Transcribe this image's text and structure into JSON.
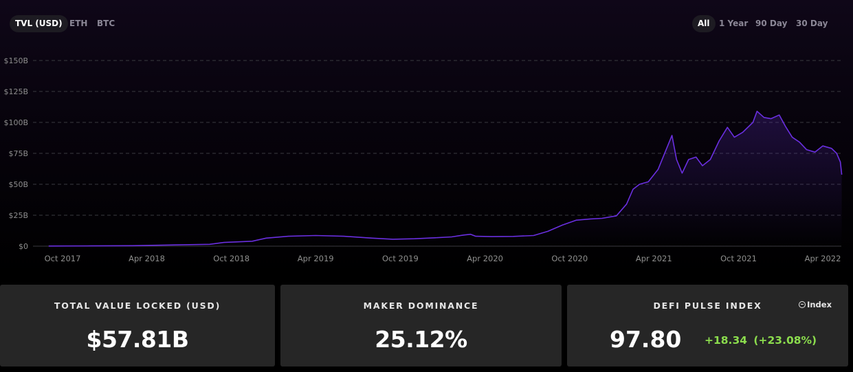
{
  "tabs": [
    {
      "label": "TVL (USD)",
      "active": true
    },
    {
      "label": "ETH",
      "active": false
    },
    {
      "label": "BTC",
      "active": false
    }
  ],
  "ranges": [
    {
      "label": "All",
      "active": true
    },
    {
      "label": "1 Year",
      "active": false
    },
    {
      "label": "90 Day",
      "active": false
    },
    {
      "label": "30 Day",
      "active": false
    }
  ],
  "colors": {
    "line": "#6a2fe0",
    "grid": "#3a3a40",
    "axis_text": "#8e8e8e",
    "positive": "#8bdc4d"
  },
  "chart_data": {
    "type": "area",
    "title": "",
    "xlabel": "",
    "ylabel": "",
    "y_ticks": [
      "$0",
      "$25B",
      "$50B",
      "$75B",
      "$100B",
      "$125B",
      "$150B"
    ],
    "x_ticks": [
      "Oct 2017",
      "Apr 2018",
      "Oct 2018",
      "Apr 2019",
      "Oct 2019",
      "Apr 2020",
      "Oct 2020",
      "Apr 2021",
      "Oct 2021",
      "Apr 2022"
    ],
    "ylim": [
      0,
      150
    ],
    "y_unit": "billion USD",
    "grid": true,
    "series": [
      {
        "values": [
          [
            "2017-09-01",
            0.1
          ],
          [
            "2017-12-01",
            0.2
          ],
          [
            "2018-03-01",
            0.4
          ],
          [
            "2018-06-01",
            1.0
          ],
          [
            "2018-08-15",
            1.5
          ],
          [
            "2018-09-15",
            3.0
          ],
          [
            "2018-11-15",
            4.0
          ],
          [
            "2018-12-15",
            6.5
          ],
          [
            "2019-02-01",
            8.0
          ],
          [
            "2019-04-01",
            8.6
          ],
          [
            "2019-06-01",
            8.0
          ],
          [
            "2019-08-01",
            6.5
          ],
          [
            "2019-09-15",
            5.6
          ],
          [
            "2019-11-01",
            6.0
          ],
          [
            "2019-12-15",
            6.8
          ],
          [
            "2020-01-20",
            7.5
          ],
          [
            "2020-02-15",
            9.0
          ],
          [
            "2020-03-01",
            9.6
          ],
          [
            "2020-03-12",
            8.0
          ],
          [
            "2020-04-15",
            7.7
          ],
          [
            "2020-06-01",
            7.9
          ],
          [
            "2020-07-15",
            8.6
          ],
          [
            "2020-08-15",
            12.0
          ],
          [
            "2020-09-15",
            17.0
          ],
          [
            "2020-10-15",
            21.0
          ],
          [
            "2020-11-15",
            22.0
          ],
          [
            "2020-12-10",
            22.5
          ],
          [
            "2021-01-10",
            24.5
          ],
          [
            "2021-02-01",
            34.0
          ],
          [
            "2021-02-15",
            46.0
          ],
          [
            "2021-03-01",
            50.0
          ],
          [
            "2021-03-20",
            52.0
          ],
          [
            "2021-04-10",
            62.0
          ],
          [
            "2021-05-10",
            89.5
          ],
          [
            "2021-05-20",
            70.0
          ],
          [
            "2021-06-01",
            59.0
          ],
          [
            "2021-06-15",
            70.0
          ],
          [
            "2021-07-01",
            72.0
          ],
          [
            "2021-07-15",
            65.0
          ],
          [
            "2021-08-01",
            70.0
          ],
          [
            "2021-08-20",
            85.0
          ],
          [
            "2021-09-07",
            96.0
          ],
          [
            "2021-09-22",
            88.0
          ],
          [
            "2021-10-10",
            92.0
          ],
          [
            "2021-11-01",
            100.0
          ],
          [
            "2021-11-10",
            109.0
          ],
          [
            "2021-11-25",
            104.0
          ],
          [
            "2021-12-10",
            103.0
          ],
          [
            "2021-12-28",
            106.0
          ],
          [
            "2022-01-10",
            97.0
          ],
          [
            "2022-01-25",
            88.0
          ],
          [
            "2022-02-10",
            84.0
          ],
          [
            "2022-02-25",
            78.0
          ],
          [
            "2022-03-15",
            76.0
          ],
          [
            "2022-04-01",
            81.0
          ],
          [
            "2022-04-20",
            79.0
          ],
          [
            "2022-05-01",
            75.0
          ],
          [
            "2022-05-09",
            68.0
          ],
          [
            "2022-05-12",
            57.8
          ]
        ]
      }
    ]
  },
  "cards": [
    {
      "label": "TOTAL VALUE LOCKED (USD)",
      "value": "$57.81B"
    },
    {
      "label": "MAKER DOMINANCE",
      "value": "25.12%"
    },
    {
      "label": "DEFI PULSE INDEX",
      "value": "97.80",
      "change": "+18.34",
      "change_pct": "(+23.08%)",
      "badge": "Index"
    }
  ]
}
